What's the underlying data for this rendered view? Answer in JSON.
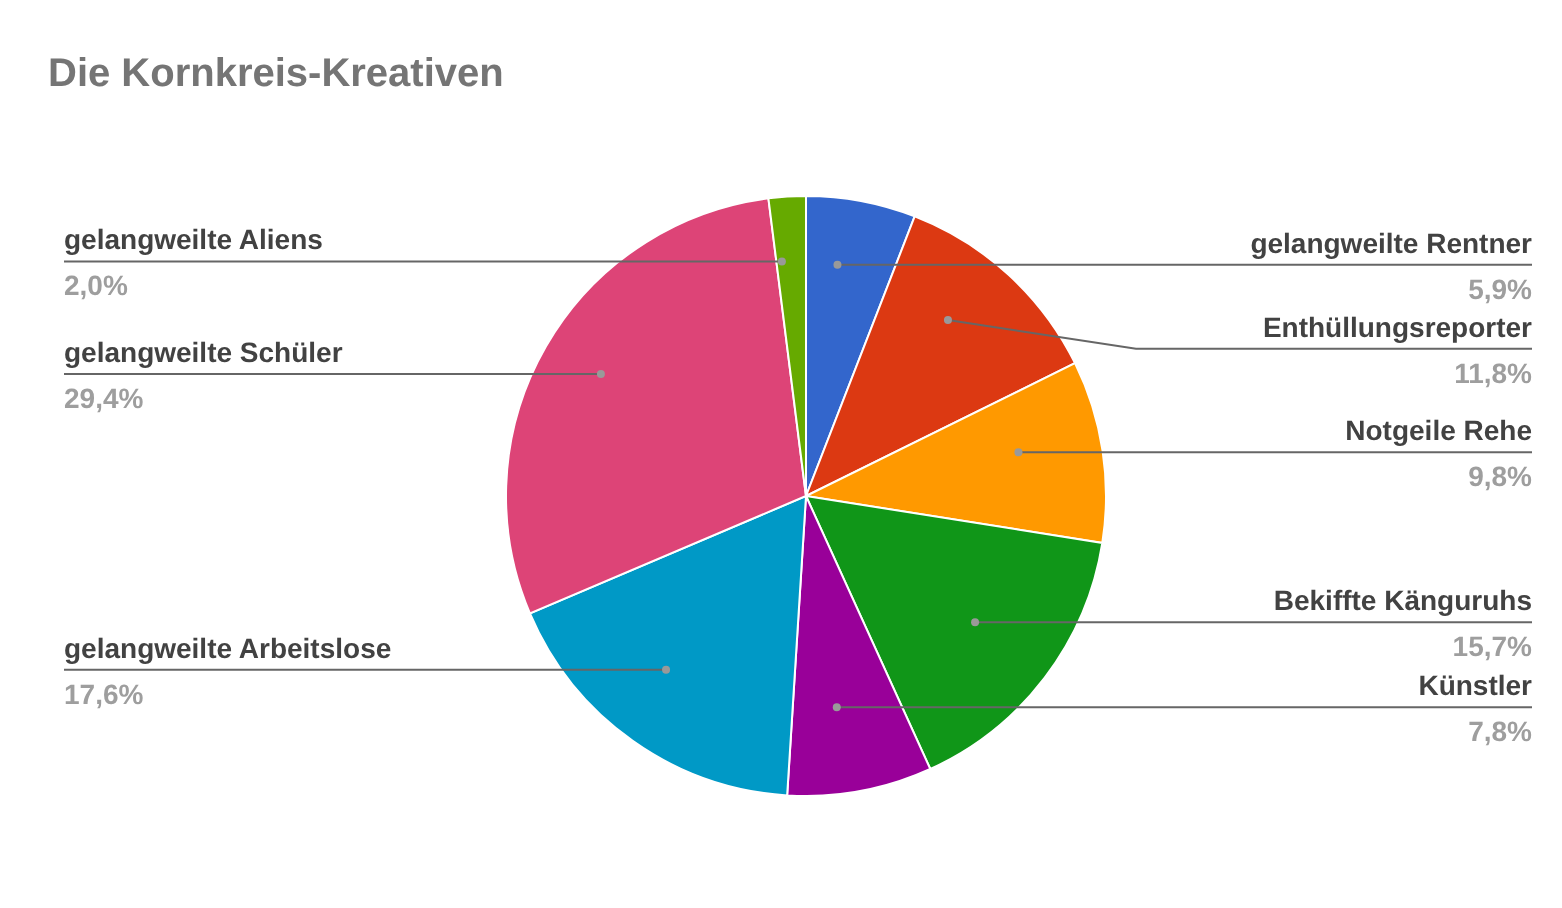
{
  "chart_data": {
    "type": "pie",
    "title": "Die Kornkreis-Kreativen",
    "categories": [
      "gelangweilte Rentner",
      "Enthüllungsreporter",
      "Notgeile Rehe",
      "Bekiffte Känguruhs",
      "Künstler",
      "gelangweilte Arbeitslose",
      "gelangweilte Schüler",
      "gelangweilte Aliens"
    ],
    "values": [
      5.9,
      11.8,
      9.8,
      15.7,
      7.8,
      17.6,
      29.4,
      2.0
    ],
    "colors": [
      "#3366cc",
      "#dc3912",
      "#ff9900",
      "#109618",
      "#990099",
      "#0099c6",
      "#dd4477",
      "#66aa00"
    ],
    "value_labels": [
      "5,9%",
      "11,8%",
      "9,8%",
      "15,7%",
      "7,8%",
      "17,6%",
      "29,4%",
      "2,0%"
    ]
  }
}
